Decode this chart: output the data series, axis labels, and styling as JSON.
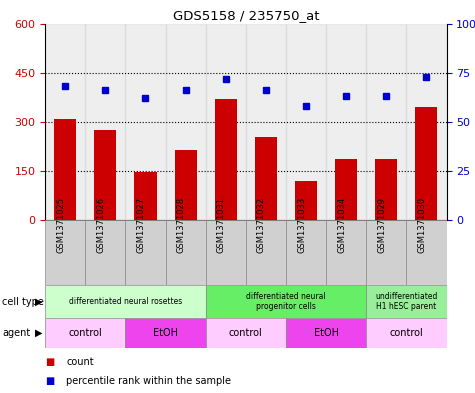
{
  "title": "GDS5158 / 235750_at",
  "samples": [
    "GSM1371025",
    "GSM1371026",
    "GSM1371027",
    "GSM1371028",
    "GSM1371031",
    "GSM1371032",
    "GSM1371033",
    "GSM1371034",
    "GSM1371029",
    "GSM1371030"
  ],
  "counts": [
    310,
    275,
    148,
    215,
    370,
    255,
    120,
    185,
    185,
    345
  ],
  "percentiles": [
    68,
    66,
    62,
    66,
    72,
    66,
    58,
    63,
    63,
    73
  ],
  "ylim_left": [
    0,
    600
  ],
  "ylim_right": [
    0,
    100
  ],
  "yticks_left": [
    0,
    150,
    300,
    450,
    600
  ],
  "ytick_labels_left": [
    "0",
    "150",
    "300",
    "450",
    "600"
  ],
  "yticks_right": [
    0,
    25,
    50,
    75,
    100
  ],
  "ytick_labels_right": [
    "0",
    "25",
    "50",
    "75",
    "100%"
  ],
  "bar_color": "#cc0000",
  "dot_color": "#0000cc",
  "bar_width": 0.55,
  "grid_lines": [
    150,
    300,
    450
  ],
  "cell_type_groups": [
    {
      "label": "differentiated neural rosettes",
      "start": 0,
      "end": 4,
      "color": "#ccffcc"
    },
    {
      "label": "differentiated neural\nprogenitor cells",
      "start": 4,
      "end": 8,
      "color": "#66ee66"
    },
    {
      "label": "undifferentiated\nH1 hESC parent",
      "start": 8,
      "end": 10,
      "color": "#99ee99"
    }
  ],
  "agent_groups": [
    {
      "label": "control",
      "start": 0,
      "end": 2,
      "color": "#ffccff"
    },
    {
      "label": "EtOH",
      "start": 2,
      "end": 4,
      "color": "#ee44ee"
    },
    {
      "label": "control",
      "start": 4,
      "end": 6,
      "color": "#ffccff"
    },
    {
      "label": "EtOH",
      "start": 6,
      "end": 8,
      "color": "#ee44ee"
    },
    {
      "label": "control",
      "start": 8,
      "end": 10,
      "color": "#ffccff"
    }
  ],
  "xlabel_cell_type": "cell type",
  "xlabel_agent": "agent",
  "legend_count_label": "count",
  "legend_pct_label": "percentile rank within the sample",
  "tick_color_left": "#cc0000",
  "tick_color_right": "#0000cc",
  "bg_color": "#ffffff",
  "sample_col_color": "#d0d0d0"
}
